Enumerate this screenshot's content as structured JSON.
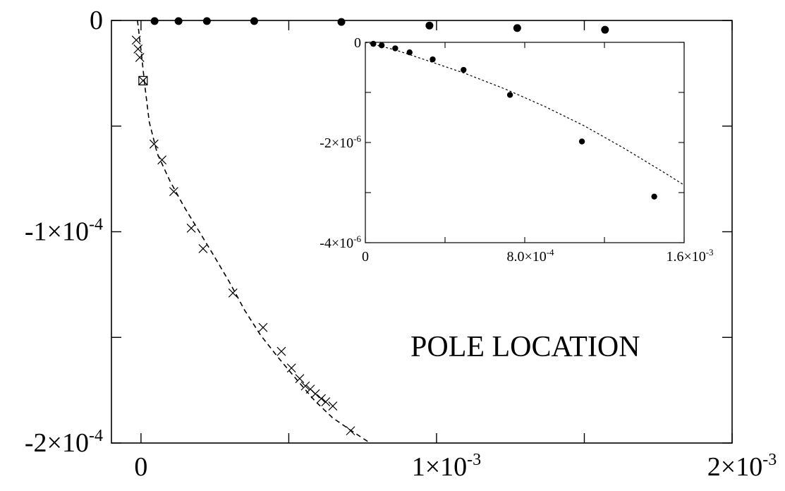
{
  "chart_data": {
    "type": "scatter",
    "title": "",
    "annotation": "POLE LOCATION",
    "main": {
      "xlim": [
        -0.0001,
        0.002
      ],
      "ylim": [
        -0.0002,
        0.0
      ],
      "x_ticks": [
        0,
        0.0005,
        0.001,
        0.0015,
        0.002
      ],
      "y_ticks": [
        0,
        -5e-05,
        -0.0001,
        -0.00015,
        -0.0002
      ],
      "x_tick_labels": [
        {
          "value": 0,
          "mant": "0",
          "exp": ""
        },
        {
          "value": 0.001,
          "mant": "1×10",
          "exp": "-3"
        },
        {
          "value": 0.002,
          "mant": "2×10",
          "exp": "-3"
        }
      ],
      "y_tick_labels": [
        {
          "value": 0,
          "mant": "0",
          "exp": ""
        },
        {
          "value": -0.0001,
          "mant": "-1×10",
          "exp": "-4"
        },
        {
          "value": -0.0002,
          "mant": "-2×10",
          "exp": "-4"
        }
      ],
      "series": [
        {
          "marker": "dot",
          "x": [
            4.6e-05,
            0.000127,
            0.000223,
            0.000383,
            0.000678,
            0.000976,
            0.001273,
            0.00157
          ],
          "y": [
            -3e-07,
            -3e-07,
            -3e-07,
            -3e-07,
            -7e-07,
            -2.4e-06,
            -3.6e-06,
            -4.4e-06
          ]
        },
        {
          "marker": "cross",
          "x": [
            -1.6e-05,
            -1e-05,
            -4e-06,
            4.4e-05,
            7.1e-05,
            0.000111,
            0.00017,
            0.00021,
            0.000311,
            0.000413,
            0.000475,
            0.000509,
            0.000537,
            0.000556,
            0.000573,
            0.00059,
            0.00061,
            0.000625,
            0.000649,
            0.000709
          ],
          "y": [
            -9.3e-06,
            -1.35e-05,
            -1.75e-05,
            -5.85e-05,
            -6.6e-05,
            -8.1e-05,
            -9.83e-05,
            -0.000108,
            -0.000129,
            -0.0001453,
            -0.0001566,
            -0.0001645,
            -0.0001695,
            -0.000173,
            -0.0001745,
            -0.0001767,
            -0.000179,
            -0.0001805,
            -0.0001825,
            -0.0001942
          ]
        },
        {
          "marker": "boxcross",
          "x": [
            7e-06
          ],
          "y": [
            -2.85e-05
          ]
        },
        {
          "marker": "fit-dashed",
          "x": [
            -1.2e-05,
            0.0,
            1.3e-05,
            2.8e-05,
            5.5e-05,
            9.8e-05,
            0.000145,
            0.000193,
            0.000245,
            0.0003,
            0.00035,
            0.000405,
            0.000467,
            0.000527,
            0.000588,
            0.000648,
            0.00071,
            0.000775
          ],
          "y": [
            0.0,
            -1.4e-05,
            -3.1e-05,
            -4.8e-05,
            -6.3e-05,
            -7.6e-05,
            -8.8e-05,
            -9.9e-05,
            -0.000111,
            -0.000124,
            -0.000137,
            -0.000149,
            -0.00016,
            -0.00017,
            -0.00018,
            -0.000188,
            -0.000194,
            -0.0002
          ]
        }
      ]
    },
    "inset": {
      "xlim": [
        0,
        0.0016
      ],
      "ylim": [
        -4e-06,
        0.0
      ],
      "x_ticks": [
        0,
        0.0004,
        0.0008,
        0.0012,
        0.0016
      ],
      "y_ticks": [
        0,
        -1e-06,
        -2e-06,
        -3e-06,
        -4e-06
      ],
      "x_tick_labels": [
        {
          "value": 0,
          "mant": "0",
          "exp": ""
        },
        {
          "value": 0.0008,
          "mant": "8.0×10",
          "exp": "-4"
        },
        {
          "value": 0.0016,
          "mant": "1.6×10",
          "exp": "-3"
        }
      ],
      "y_tick_labels": [
        {
          "value": 0,
          "mant": "0",
          "exp": ""
        },
        {
          "value": -2e-06,
          "mant": "-2×10",
          "exp": "-6"
        },
        {
          "value": -4e-06,
          "mant": "-4×10",
          "exp": "-6"
        }
      ],
      "series": [
        {
          "marker": "dot",
          "x": [
            4e-05,
            8.2e-05,
            0.00015,
            0.000222,
            0.000338,
            0.000493,
            0.000726,
            0.001087,
            0.00145
          ],
          "y": [
            -3e-08,
            -6e-08,
            -1.2e-07,
            -2e-07,
            -3.4e-07,
            -5.5e-07,
            -1.05e-06,
            -1.98e-06,
            -3.08e-06
          ]
        },
        {
          "marker": "fit-dotted",
          "x": [
            0.0,
            5e-05,
            0.00015,
            0.0003,
            0.0005,
            0.0007,
            0.0009,
            0.0011,
            0.0013,
            0.0015,
            0.0016
          ],
          "y": [
            0.0,
            -5e-08,
            -1.5e-07,
            -3.5e-07,
            -6.2e-07,
            -9.3e-07,
            -1.28e-06,
            -1.67e-06,
            -2.12e-06,
            -2.6e-06,
            -2.85e-06
          ]
        }
      ]
    }
  }
}
